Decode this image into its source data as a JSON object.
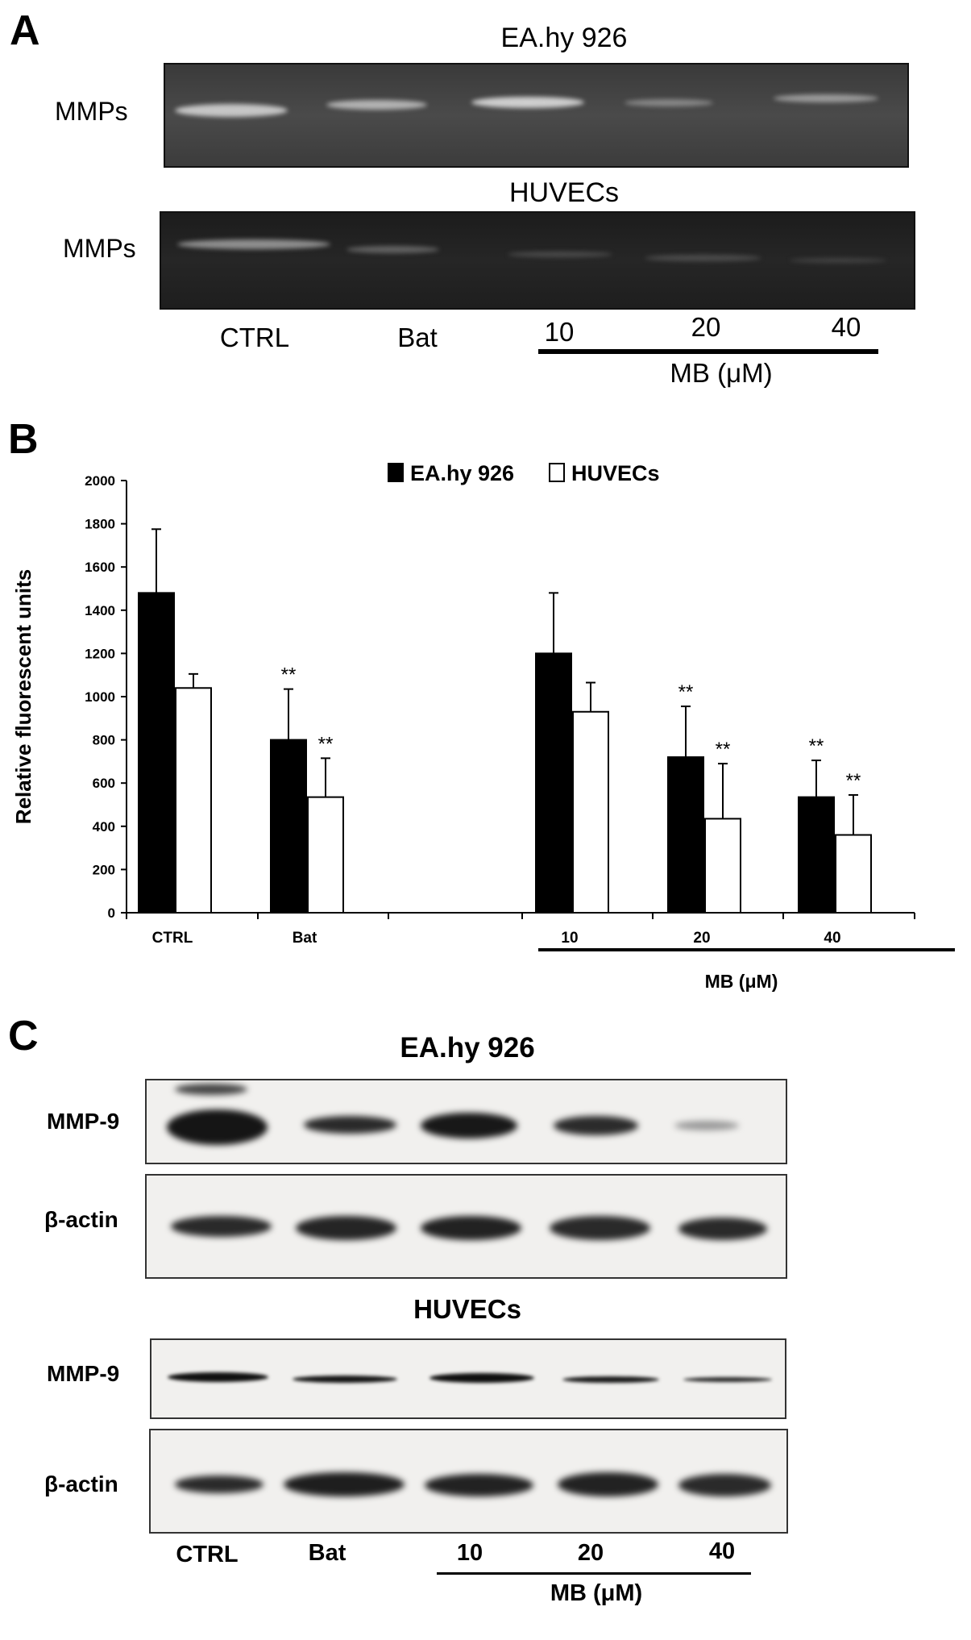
{
  "panel_a": {
    "letter": "A",
    "top_gel": {
      "title": "EA.hy 926",
      "row_label": "MMPs"
    },
    "bottom_gel": {
      "title": "HUVECs",
      "row_label": "MMPs"
    },
    "lanes": [
      "CTRL",
      "Bat",
      "10",
      "20",
      "40"
    ],
    "group_label": "MB (μM)"
  },
  "panel_b": {
    "letter": "B"
  },
  "chart_data": {
    "type": "bar",
    "categories": [
      "CTRL",
      "Bat",
      "10",
      "20",
      "40"
    ],
    "series": [
      {
        "name": "EA.hy 926",
        "values": [
          1480,
          800,
          1200,
          720,
          535
        ],
        "errors": [
          295,
          235,
          280,
          235,
          170
        ],
        "significance": [
          "",
          "**",
          "",
          "**",
          "**"
        ],
        "fill": "#000000"
      },
      {
        "name": "HUVECs",
        "values": [
          1040,
          535,
          930,
          435,
          360
        ],
        "errors": [
          65,
          180,
          135,
          255,
          185
        ],
        "significance": [
          "",
          "**",
          "",
          "**",
          "**"
        ],
        "fill": "#ffffff"
      }
    ],
    "ylabel": "Relative fluorescent units",
    "xlabel": "",
    "group_label": "MB (μM)",
    "ylim": [
      0,
      2000
    ],
    "yticks": [
      "0",
      "200",
      "400",
      "600",
      "800",
      "1000",
      "1200",
      "1400",
      "1600",
      "1800",
      "2000"
    ],
    "legend_position": "top-center",
    "grid": false
  },
  "panel_c": {
    "letter": "C",
    "top_title": "EA.hy 926",
    "bottom_title": "HUVECs",
    "top_rows": [
      "MMP-9",
      "β-actin"
    ],
    "bottom_rows": [
      "MMP-9",
      "β-actin"
    ],
    "lanes": [
      "CTRL",
      "Bat",
      "10",
      "20",
      "40"
    ],
    "group_label": "MB (μM)"
  }
}
